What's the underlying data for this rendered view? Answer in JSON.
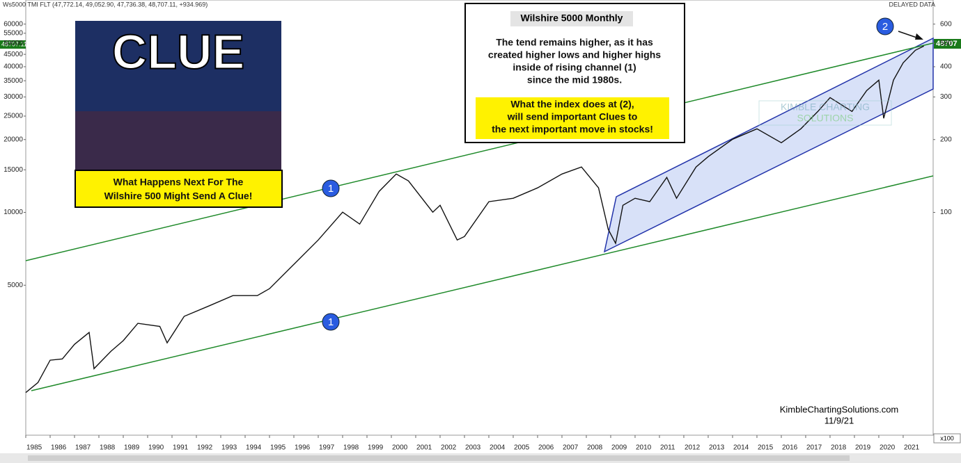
{
  "chart_data": {
    "type": "line",
    "header": "Ws5000 TMI FLT (47,772.14, 49,052.90, 47,736.38, 48,707.11, +934.969)",
    "delayed": "DELAYED DATA",
    "log_scale": true,
    "x": [
      1985.0,
      1985.5,
      1986.0,
      1986.5,
      1987.0,
      1987.6,
      1987.8,
      1988.5,
      1989.0,
      1989.6,
      1990.5,
      1990.8,
      1991.5,
      1992.5,
      1993.5,
      1994.5,
      1995.0,
      1996.0,
      1997.0,
      1998.0,
      1998.7,
      1999.5,
      2000.2,
      2000.7,
      2001.7,
      2002.0,
      2002.7,
      2003.0,
      2004.0,
      2005.0,
      2006.0,
      2007.0,
      2007.8,
      2008.5,
      2008.9,
      2009.2,
      2009.5,
      2010.0,
      2010.6,
      2011.3,
      2011.7,
      2012.5,
      2013.0,
      2014.0,
      2015.0,
      2016.0,
      2016.8,
      2017.5,
      2018.0,
      2018.9,
      2019.5,
      2020.0,
      2020.2,
      2020.6,
      2021.0,
      2021.5,
      2021.85
    ],
    "series": [
      {
        "color": "#111111",
        "values": [
          1800,
          1980,
          2450,
          2480,
          2850,
          3190,
          2260,
          2670,
          2950,
          3480,
          3380,
          2890,
          3720,
          4100,
          4530,
          4530,
          4840,
          6100,
          7690,
          10020,
          8950,
          12220,
          14410,
          13500,
          10020,
          10700,
          7690,
          7950,
          11070,
          11440,
          12630,
          14410,
          15400,
          12630,
          8500,
          7450,
          10700,
          11440,
          11070,
          13950,
          11440,
          15400,
          17000,
          20060,
          22150,
          19410,
          22150,
          26140,
          29820,
          26140,
          31880,
          35200,
          24470,
          35200,
          41520,
          46780,
          48707
        ]
      }
    ],
    "xlim": [
      1985,
      2022.23
    ],
    "xticks": [
      1985,
      1986,
      1987,
      1988,
      1989,
      1990,
      1991,
      1992,
      1993,
      1994,
      1995,
      1996,
      1997,
      1998,
      1999,
      2000,
      2001,
      2002,
      2003,
      2004,
      2005,
      2006,
      2007,
      2008,
      2009,
      2010,
      2011,
      2012,
      2013,
      2014,
      2015,
      2016,
      2017,
      2018,
      2019,
      2020,
      2021
    ],
    "ylim": [
      1200,
      67000
    ],
    "yticks": [
      5000,
      10000,
      15000,
      20000,
      25000,
      30000,
      35000,
      40000,
      45000,
      50000,
      55000,
      60000
    ],
    "y2lim": [
      12,
      670
    ],
    "y2ticks": [
      100,
      200,
      300,
      400,
      500,
      600
    ],
    "last_label_left": "48707.11",
    "last_label_right": "48707",
    "scale_note": "x100",
    "box_title": "Wilshire 5000 Monthly",
    "box_text": [
      "The tend remains higher, as it has",
      "created higher lows and higher highs",
      "inside of rising channel (1)",
      "since the mid 1980s."
    ],
    "callout": [
      "What the index does at (2),",
      "will send important Clues to",
      "the next important move in stocks!"
    ],
    "image_title": "CLUE",
    "image_caption": [
      "What Happens Next For The",
      "Wilshire 500 Might Send A Clue!"
    ],
    "markers": [
      "1",
      "1",
      "2"
    ],
    "watermark": [
      "KIMBLE CHARTING",
      "SOLUTIONS"
    ],
    "credit": "KimbleChartingSolutions.com",
    "date": "11/9/21"
  }
}
